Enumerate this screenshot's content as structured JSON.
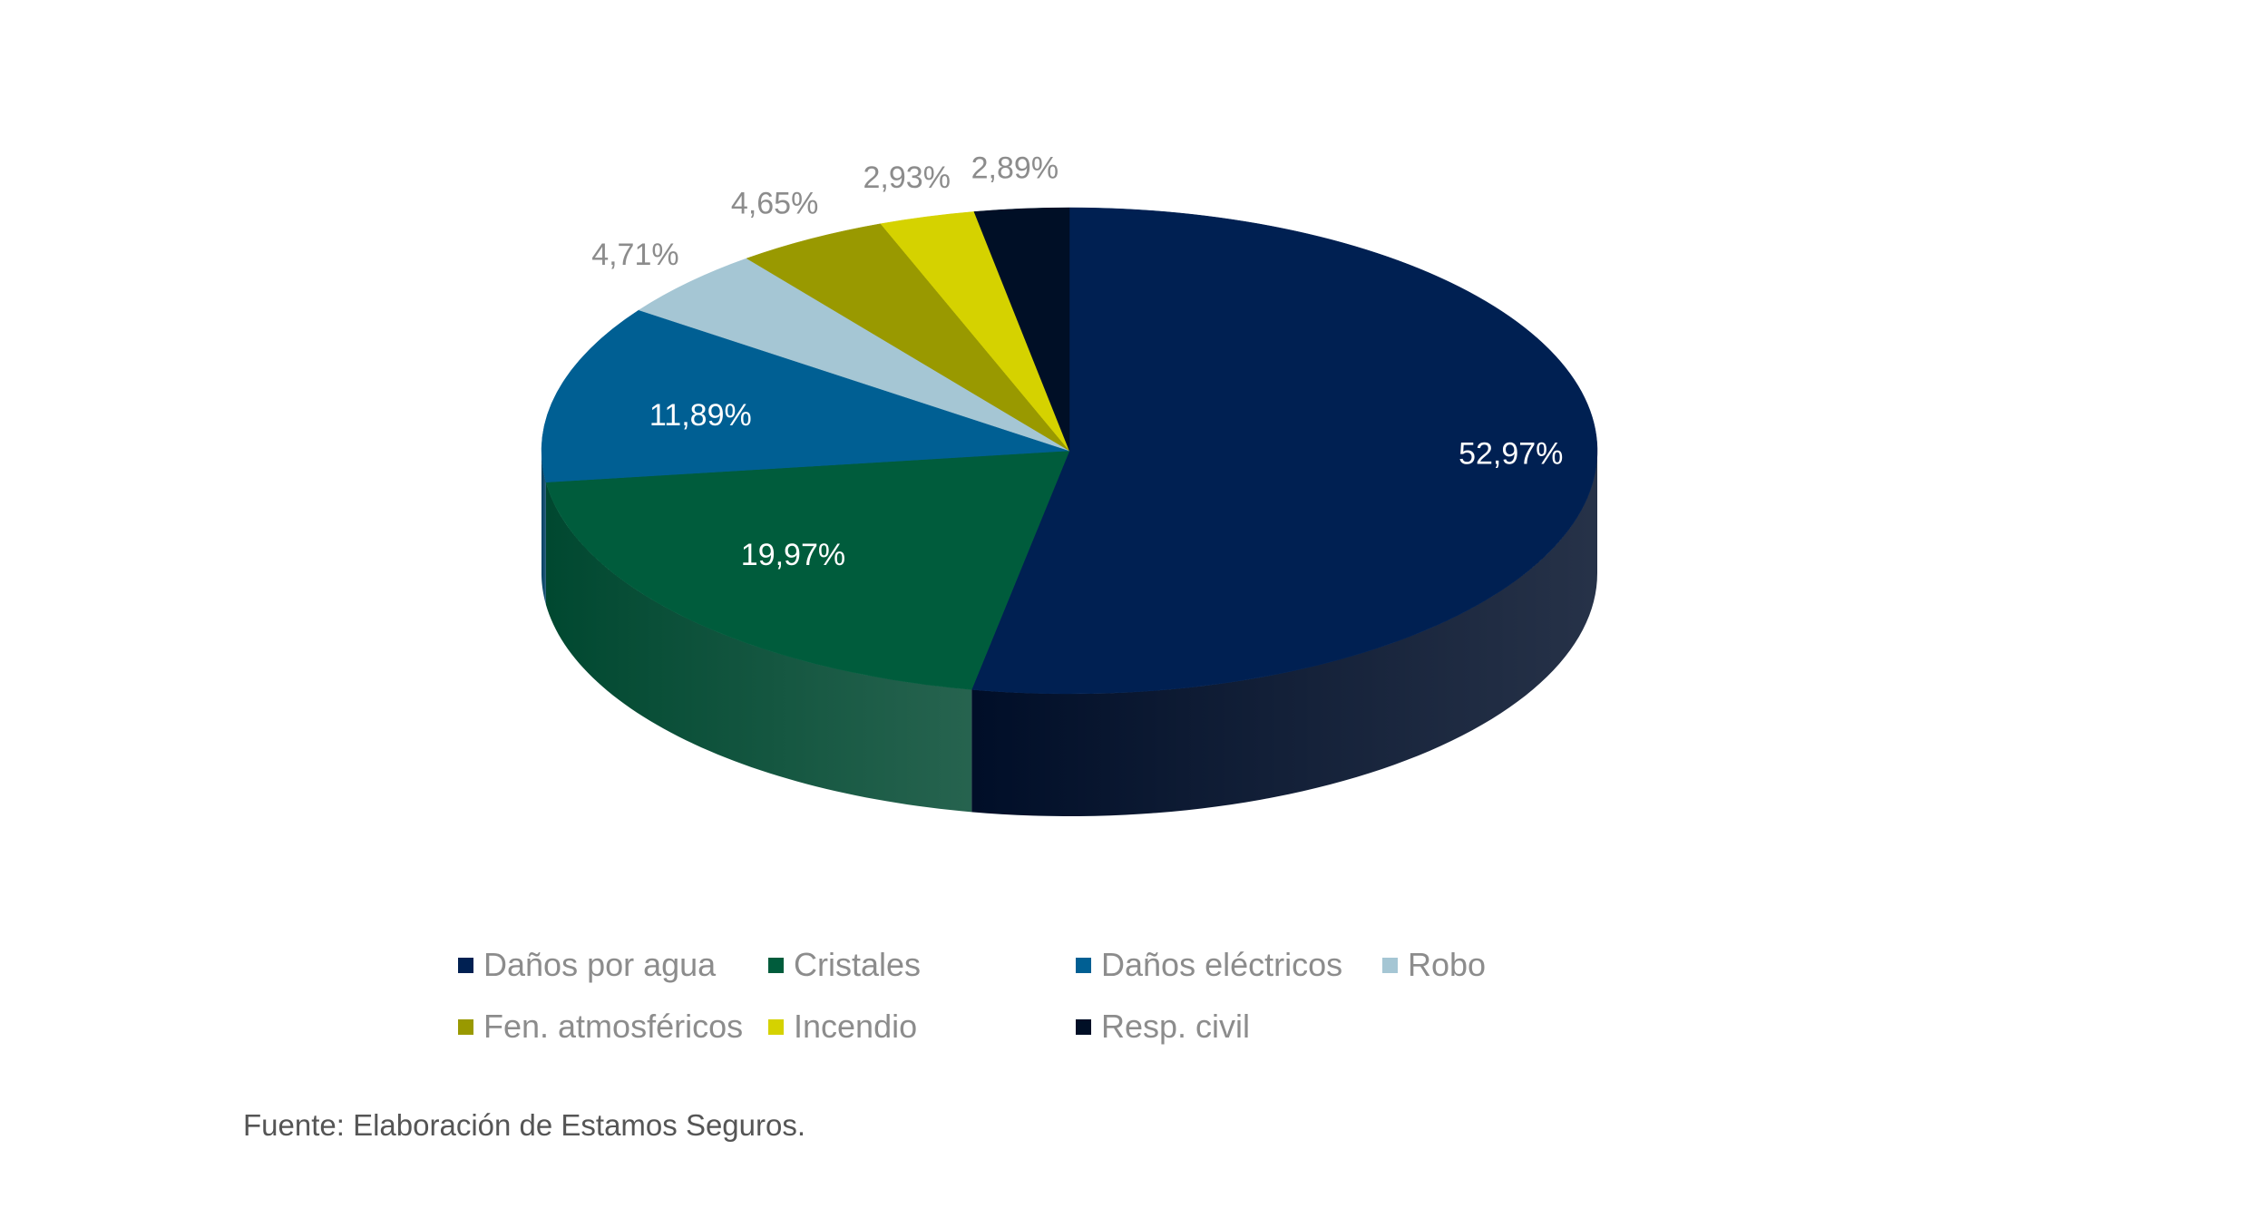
{
  "chart_data": {
    "type": "pie",
    "style": "3d",
    "title": "",
    "categories": [
      "Daños por agua",
      "Cristales",
      "Daños eléctricos",
      "Robo",
      "Fen. atmosféricos",
      "Incendio",
      "Resp. civil"
    ],
    "values": [
      52.97,
      19.97,
      11.89,
      4.71,
      4.65,
      2.93,
      2.89
    ],
    "data_labels": [
      "52,97%",
      "19,97%",
      "11,89%",
      "4,71%",
      "4,65%",
      "2,93%",
      "2,89%"
    ],
    "colors": [
      "#002052",
      "#005C3C",
      "#005F93",
      "#A5C6D4",
      "#999900",
      "#D5D200",
      "#000F26"
    ],
    "side_colors": [
      "#000E28",
      "#004830",
      "#003F63",
      "#6F8E9B",
      "#6B6B00",
      "#999600",
      "#000814"
    ],
    "label_colors": [
      "#ffffff",
      "#ffffff",
      "#ffffff",
      "#8c8c8c",
      "#8c8c8c",
      "#8c8c8c",
      "#8c8c8c"
    ],
    "legend": {
      "position": "bottom",
      "rows": [
        [
          0,
          1,
          2,
          3
        ],
        [
          4,
          5,
          6
        ]
      ]
    }
  },
  "source": "Fuente: Elaboración de Estamos Seguros."
}
